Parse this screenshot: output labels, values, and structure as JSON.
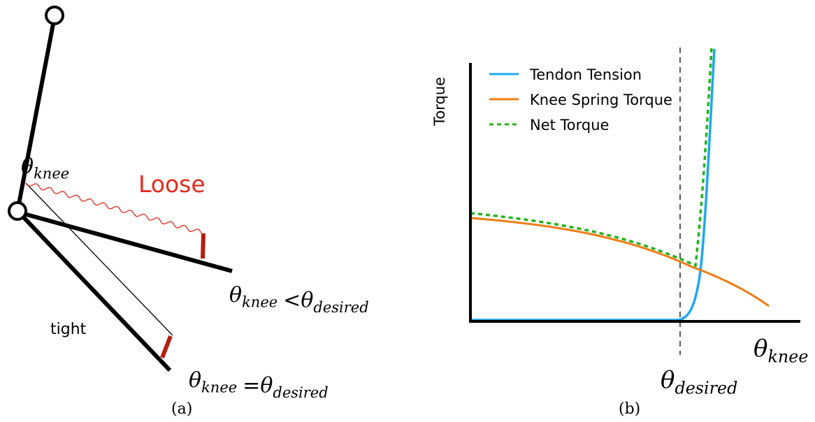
{
  "panel_a": {
    "angle_label": {
      "symbol": "θ",
      "subscript": "knee"
    },
    "loose_label": "Loose",
    "tight_label": "tight",
    "loose_condition": {
      "left": {
        "symbol": "θ",
        "subscript": "knee"
      },
      "operator": "<",
      "right": {
        "symbol": "θ",
        "subscript": "desired"
      }
    },
    "tight_condition": {
      "left": {
        "symbol": "θ",
        "subscript": "knee"
      },
      "operator": "=",
      "right": {
        "symbol": "θ",
        "subscript": "desired"
      }
    },
    "caption": "(a)"
  },
  "panel_b": {
    "y_axis_label": "Torque",
    "x_axis_label": {
      "symbol": "θ",
      "subscript": "knee"
    },
    "marker_label": {
      "symbol": "θ",
      "subscript": "desired"
    },
    "legend": [
      {
        "name": "Tendon Tension",
        "color": "#1ea7f0",
        "style": "solid"
      },
      {
        "name": "Knee Spring Torque",
        "color": "#f07c12",
        "style": "solid"
      },
      {
        "name": "Net Torque",
        "color": "#22b419",
        "style": "dashed"
      }
    ],
    "caption": "(b)"
  }
}
